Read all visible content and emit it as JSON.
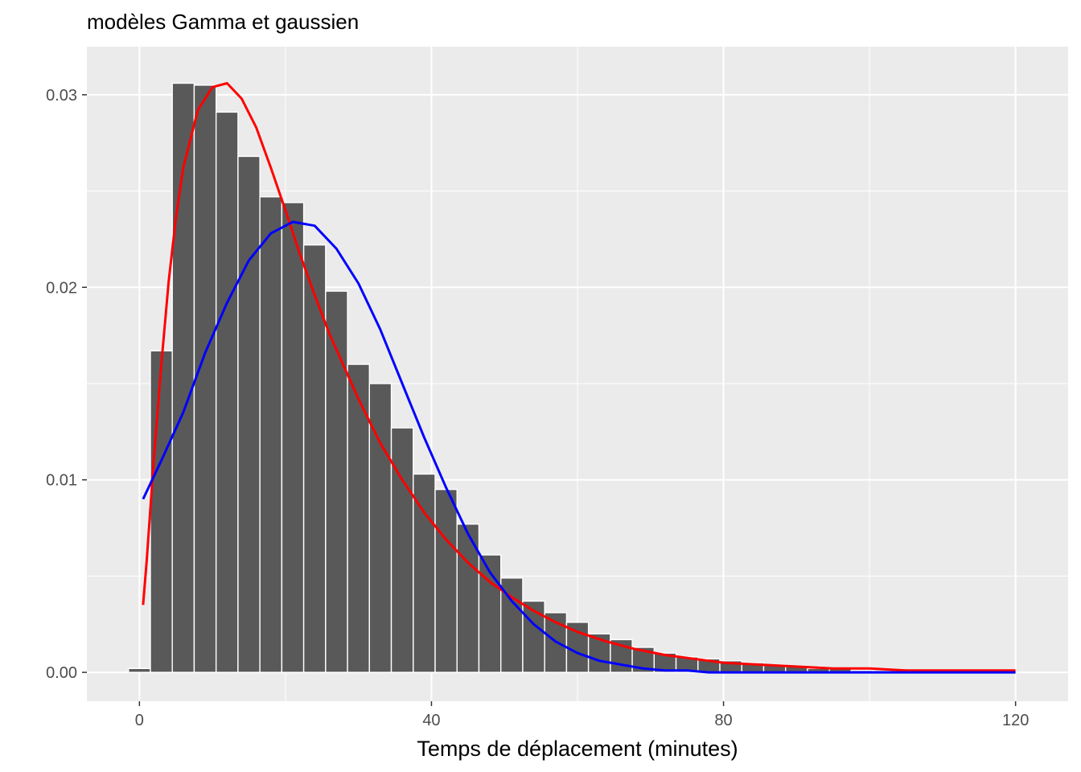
{
  "chart_data": {
    "type": "bar",
    "title": "modèles Gamma et gaussien",
    "xlabel": "Temps de déplacement (minutes)",
    "ylabel": "",
    "xlim": [
      -7.2,
      127.2
    ],
    "ylim": [
      -0.0015,
      0.0325
    ],
    "x_ticks": [
      0,
      40,
      80,
      120
    ],
    "x_tick_labels": [
      "0",
      "40",
      "80",
      "120"
    ],
    "y_ticks": [
      0.0,
      0.01,
      0.02,
      0.03
    ],
    "y_tick_labels": [
      "0.00",
      "0.01",
      "0.02",
      "0.03"
    ],
    "grid": true,
    "panel_background": "#ebebeb",
    "bar_color": "#595959",
    "bar_outline": "#ffffff",
    "bin_width": 3,
    "histogram": {
      "bin_centers": [
        0,
        3,
        6,
        9,
        12,
        15,
        18,
        21,
        24,
        27,
        30,
        33,
        36,
        39,
        42,
        45,
        48,
        51,
        54,
        57,
        60,
        63,
        66,
        69,
        72,
        75,
        78,
        81,
        84,
        87,
        90,
        93,
        96,
        99,
        102,
        105,
        108,
        111,
        114,
        117,
        120
      ],
      "density": [
        0.0002,
        0.0167,
        0.0306,
        0.0305,
        0.0291,
        0.0268,
        0.0247,
        0.0244,
        0.0222,
        0.0198,
        0.016,
        0.015,
        0.0127,
        0.0103,
        0.0095,
        0.0077,
        0.0061,
        0.0049,
        0.0037,
        0.0031,
        0.0026,
        0.002,
        0.0017,
        0.0013,
        0.001,
        0.0008,
        0.0007,
        0.0006,
        0.0005,
        0.0004,
        0.0003,
        0.0002,
        0.0002,
        0.0001,
        0.0001,
        0.0001,
        0.0001,
        0.0001,
        0.0,
        0.0,
        0.0
      ]
    },
    "series": [
      {
        "kind": "gamma",
        "color": "#ff0000",
        "x": [
          0.5,
          1,
          2,
          3,
          4,
          5,
          6,
          8,
          10,
          12,
          14,
          16,
          18,
          20,
          22,
          24,
          26,
          28,
          30,
          33,
          36,
          39,
          42,
          45,
          48,
          51,
          54,
          57,
          60,
          64,
          68,
          72,
          76,
          80,
          85,
          90,
          95,
          100,
          105,
          110,
          115,
          120
        ],
        "y": [
          0.0035,
          0.0058,
          0.0112,
          0.016,
          0.0203,
          0.0236,
          0.0262,
          0.0292,
          0.0304,
          0.0306,
          0.0298,
          0.0283,
          0.0262,
          0.024,
          0.0217,
          0.0196,
          0.0176,
          0.0159,
          0.0142,
          0.0119,
          0.01,
          0.0083,
          0.0069,
          0.0057,
          0.0047,
          0.0039,
          0.0032,
          0.0026,
          0.0021,
          0.0016,
          0.0012,
          0.0009,
          0.0007,
          0.0005,
          0.0004,
          0.0003,
          0.0002,
          0.0002,
          0.0001,
          0.0001,
          0.0001,
          0.0001
        ]
      },
      {
        "kind": "gaussian",
        "color": "#0000ff",
        "x": [
          0.5,
          3,
          6,
          9,
          12,
          15,
          18,
          21,
          24,
          27,
          30,
          33,
          36,
          39,
          42,
          45,
          48,
          51,
          54,
          57,
          60,
          63,
          66,
          69,
          72,
          75,
          78,
          81,
          84,
          90,
          100,
          110,
          120
        ],
        "y": [
          0.009,
          0.011,
          0.0135,
          0.0166,
          0.0192,
          0.0214,
          0.0228,
          0.0234,
          0.0232,
          0.022,
          0.0202,
          0.0178,
          0.015,
          0.0122,
          0.0096,
          0.0072,
          0.0052,
          0.0037,
          0.0025,
          0.0016,
          0.001,
          0.0006,
          0.0004,
          0.0002,
          0.0001,
          0.0001,
          0.0,
          0.0,
          0.0,
          0.0,
          0.0,
          0.0,
          0.0
        ]
      }
    ]
  }
}
